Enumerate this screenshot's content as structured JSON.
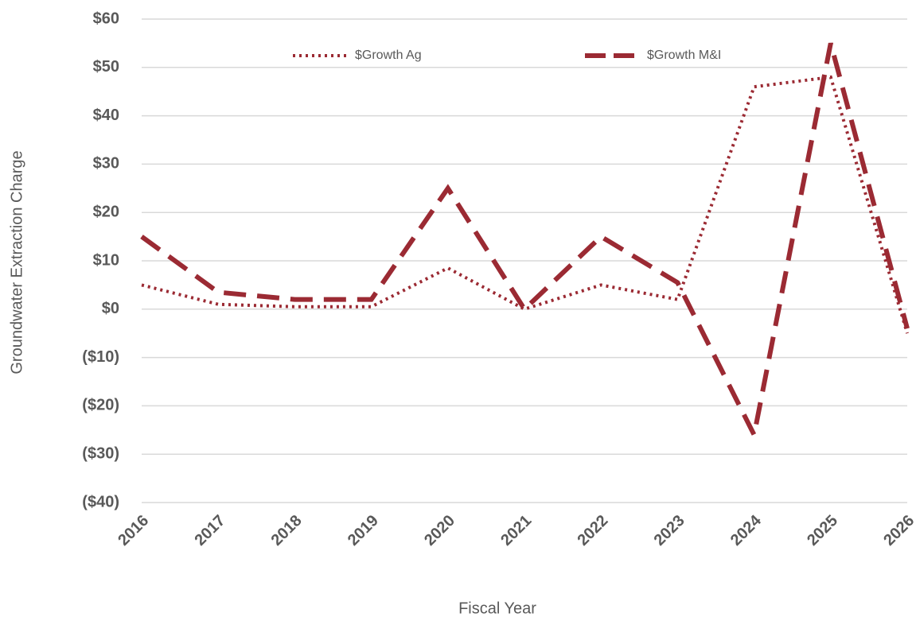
{
  "chart_data": {
    "type": "line",
    "x_label": "Fiscal Year",
    "y_label": "Groundwater Extraction Charge",
    "categories": [
      "2016",
      "2017",
      "2018",
      "2019",
      "2020",
      "2021",
      "2022",
      "2023",
      "2024",
      "2025",
      "2026"
    ],
    "series": [
      {
        "name": "$Growth Ag",
        "color": "#9b2a33",
        "dash": "dotted",
        "values": [
          5,
          1,
          0.5,
          0.5,
          8.5,
          0,
          5,
          2,
          46,
          48,
          -5
        ]
      },
      {
        "name": "$Growth M&I",
        "color": "#9b2a33",
        "dash": "dashed",
        "values": [
          15,
          3.5,
          2,
          2,
          25,
          0,
          15,
          5.5,
          -26,
          55,
          -4
        ]
      }
    ],
    "ylim": [
      -40,
      60
    ],
    "yticks": [
      {
        "value": 60,
        "label": "$60"
      },
      {
        "value": 50,
        "label": "$50"
      },
      {
        "value": 40,
        "label": "$40"
      },
      {
        "value": 30,
        "label": "$30"
      },
      {
        "value": 20,
        "label": "$20"
      },
      {
        "value": 10,
        "label": "$10"
      },
      {
        "value": 0,
        "label": "$0"
      },
      {
        "value": -10,
        "label": "($10)"
      },
      {
        "value": -20,
        "label": "($20)"
      },
      {
        "value": -30,
        "label": "($30)"
      },
      {
        "value": -40,
        "label": "($40)"
      }
    ],
    "grid": true,
    "legend": "top"
  }
}
